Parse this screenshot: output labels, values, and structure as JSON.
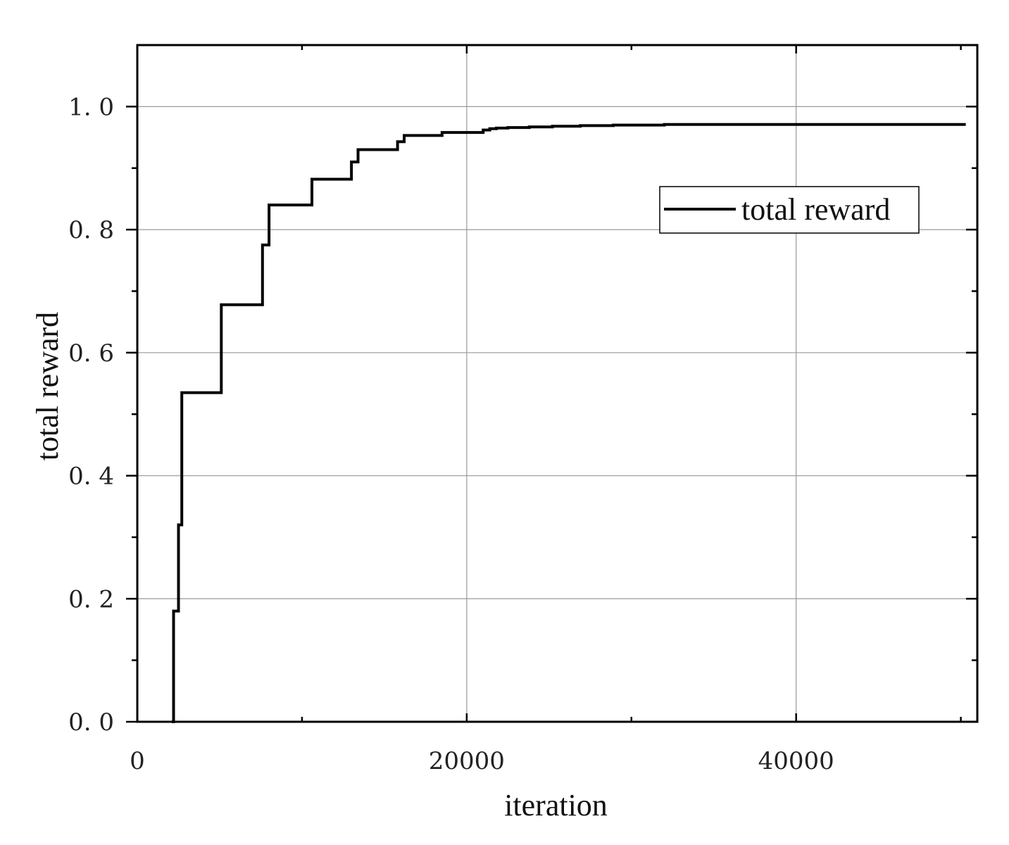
{
  "chart_data": {
    "type": "line",
    "xlabel": "iteration",
    "ylabel": "total reward",
    "xlim": [
      0,
      51000
    ],
    "ylim": [
      0,
      1.1
    ],
    "x_ticks": [
      0,
      20000,
      40000
    ],
    "x_minor_ticks": [
      10000,
      30000,
      50000
    ],
    "y_ticks": [
      0.0,
      0.2,
      0.4,
      0.6,
      0.8,
      1.0
    ],
    "y_tick_labels": [
      "0. 0",
      "0. 2",
      "0. 4",
      "0. 6",
      "0. 8",
      "1. 0"
    ],
    "y_minor_ticks": [
      0.1,
      0.3,
      0.5,
      0.7,
      0.9
    ],
    "grid": true,
    "legend_position": "upper-right",
    "series": [
      {
        "name": "total reward",
        "color": "#000000",
        "step": true,
        "x": [
          2100,
          2200,
          2500,
          2700,
          5000,
          5100,
          7500,
          7600,
          7900,
          8000,
          10500,
          10600,
          12900,
          13000,
          13300,
          13400,
          15700,
          15800,
          16100,
          16200,
          18400,
          18500,
          20600,
          21000,
          21400,
          21800,
          22500,
          23800,
          25200,
          26900,
          28900,
          32000,
          50300
        ],
        "y": [
          0.0,
          0.18,
          0.32,
          0.535,
          0.535,
          0.678,
          0.678,
          0.775,
          0.775,
          0.84,
          0.84,
          0.882,
          0.882,
          0.91,
          0.91,
          0.93,
          0.93,
          0.943,
          0.943,
          0.953,
          0.953,
          0.958,
          0.958,
          0.962,
          0.964,
          0.965,
          0.966,
          0.967,
          0.968,
          0.969,
          0.97,
          0.971,
          0.971
        ]
      }
    ]
  }
}
